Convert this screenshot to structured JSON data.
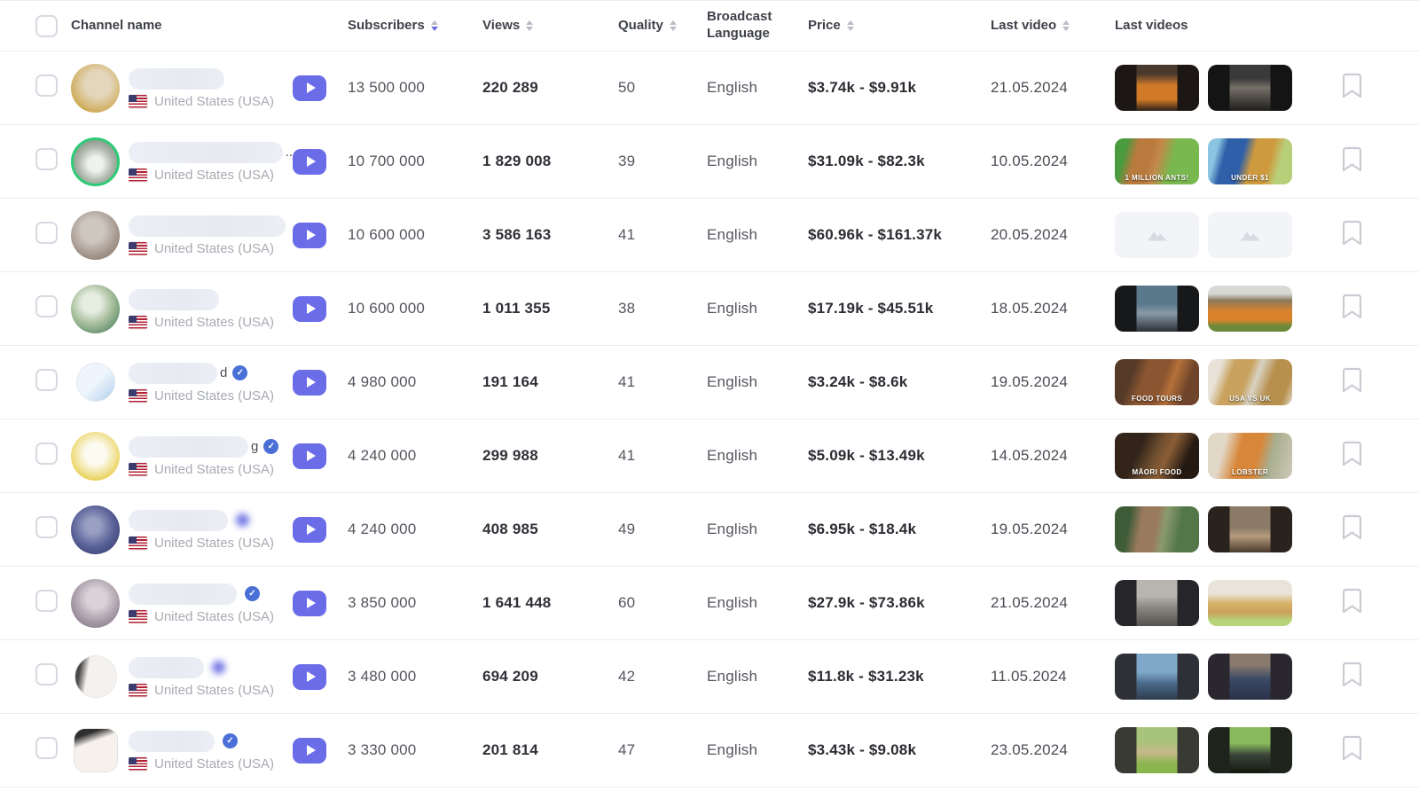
{
  "header": {
    "channel": "Channel name",
    "subscribers": "Subscribers",
    "views": "Views",
    "quality": "Quality",
    "language": "Broadcast Language",
    "price": "Price",
    "last_video": "Last video",
    "last_videos": "Last videos",
    "sort_subscribers": "desc"
  },
  "colors": {
    "accent": "#6b6ce8",
    "verified": "#4a6fd6",
    "row_border": "#ededf2",
    "placeholder_bg": "#f3f4f8"
  },
  "icons": {
    "play": "youtube-play-icon",
    "bookmark": "bookmark-icon",
    "flag": "us-flag-icon",
    "verified": "verified-check-icon",
    "placeholder": "image-placeholder-icon",
    "sort": "sort-arrows-icon"
  },
  "rows": [
    {
      "name_pill_css": "width:108px",
      "name_suffix": "",
      "badge": "none",
      "avatar_css": "background:radial-gradient(circle at 55% 42%,#e3d6bd 0 32%,#d6b978 60%,#c69a33 88%,#b8860b 100%)",
      "country": "United States (USA)",
      "subscribers": "13 500 000",
      "views": "220 289",
      "quality": "50",
      "language": "English",
      "price": "$3.74k - $9.91k",
      "last_video": "21.05.2024",
      "thumbs": [
        {
          "css": "background:linear-gradient(90deg,#1c1714 0 26%,rgba(28,23,20,0) 26% 74%,#1c1714 74%),linear-gradient(180deg,#4a3a2e 0 20%,#d07a28 45% 75%,#2e2018 100%)",
          "caption": "",
          "variant": "img"
        },
        {
          "css": "background:linear-gradient(90deg,#141414 0 26%,rgba(20,20,20,0) 26% 74%,#141414 74%),linear-gradient(180deg,#3a3a3a 0 30%,#757068 50%,#1e1d1b 100%)",
          "caption": "",
          "variant": "img"
        }
      ]
    },
    {
      "name_pill_css": "width:174px",
      "name_suffix": "..",
      "badge": "none",
      "avatar_css": "border:3px solid #2ecb76;background:radial-gradient(circle at 50% 55%,#f0f2ee 0 22%,#aab4a8 55%,#6f7d72 100%)",
      "country": "United States (USA)",
      "subscribers": "10 700 000",
      "views": "1 829 008",
      "quality": "39",
      "language": "English",
      "price": "$31.09k - $82.3k",
      "last_video": "10.05.2024",
      "thumbs": [
        {
          "css": "background:linear-gradient(105deg,#4a9a3e 0 14%,#b97a3e 26% 42%,#c4884a 50%,#79b84e 66% 100%)",
          "caption": "1 MILLION ANTS!",
          "variant": "img"
        },
        {
          "css": "background:linear-gradient(105deg,#8ac4e0 0 12%,#2f5fa8 22% 40%,#cf9a3e 52% 70%,#b8cf7a 82% 100%)",
          "caption": "UNDER $1",
          "variant": "img"
        }
      ]
    },
    {
      "name_pill_css": "width:177px",
      "name_suffix": "",
      "badge": "none",
      "avatar_css": "background:radial-gradient(circle at 45% 40%,#cec7c0 0 28%,#a29389 65%,#7e7065 100%)",
      "country": "United States (USA)",
      "subscribers": "10 600 000",
      "views": "3 586 163",
      "quality": "41",
      "language": "English",
      "price": "$60.96k - $161.37k",
      "last_video": "20.05.2024",
      "thumbs": [
        {
          "css": "background:#f3f4f8",
          "caption": "",
          "variant": "placeholder"
        },
        {
          "css": "background:#f3f4f8",
          "caption": "",
          "variant": "placeholder"
        }
      ]
    },
    {
      "name_pill_css": "width:102px",
      "name_suffix": "",
      "badge": "none",
      "avatar_css": "background:radial-gradient(circle at 42% 38%,#e6eee2 0 22%,#a8bf9c 50%,#63906f 80%,#3f7260 100%)",
      "country": "United States (USA)",
      "subscribers": "10 600 000",
      "views": "1 011 355",
      "quality": "38",
      "language": "English",
      "price": "$17.19k - $45.51k",
      "last_video": "18.05.2024",
      "thumbs": [
        {
          "css": "background:linear-gradient(90deg,#17181a 0 26%,rgba(23,24,26,0) 26% 74%,#17181a 74%),linear-gradient(180deg,#5a7a8c 0 40%,#8a9aa8 60%,#2a3038 100%)",
          "caption": "",
          "variant": "img"
        },
        {
          "css": "background:linear-gradient(180deg,#d8d8d4 0 18%,#8a7a5e 32%,#d8822e 55% 75%,#6a8a3a 88% 100%)",
          "caption": "",
          "variant": "img"
        }
      ]
    },
    {
      "name_pill_css": "width:100px",
      "name_suffix": "d",
      "badge": "check",
      "avatar_css": "width:44px;height:44px;border:1px solid #e2e8f0;background:linear-gradient(135deg,#eef5fc 0 50%,#cfe2f4 75%,#a8ccec 100%)",
      "country": "United States (USA)",
      "subscribers": "4 980 000",
      "views": "191 164",
      "quality": "41",
      "language": "English",
      "price": "$3.24k - $8.6k",
      "last_video": "19.05.2024",
      "thumbs": [
        {
          "css": "background:linear-gradient(110deg,#553a28 0 22%,#8a5530 35% 55%,#b5713a 65%,#6e442a 82% 100%)",
          "caption": "FOOD TOURS",
          "variant": "img"
        },
        {
          "css": "background:linear-gradient(110deg,#e8e2d8 0 15%,#c8a25e 28% 45%,#d8d2c2 55%,#b8904e 70% 88%,#e0d8c8 100%)",
          "caption": "USA vs UK",
          "variant": "img"
        }
      ]
    },
    {
      "name_pill_css": "width:135px",
      "name_suffix": "g",
      "badge": "check",
      "avatar_css": "background:radial-gradient(circle at 50% 45%,#fcfbf2 0 28%,#f1e49e 55%,#e6c62e 85%,#d4b61e 100%)",
      "country": "United States (USA)",
      "subscribers": "4 240 000",
      "views": "299 988",
      "quality": "41",
      "language": "English",
      "price": "$5.09k - $13.49k",
      "last_video": "14.05.2024",
      "thumbs": [
        {
          "css": "background:linear-gradient(115deg,#32241a 0 30%,#6e4e2e 48%,#8a5e36 60%,#241a12 80% 100%)",
          "caption": "MĀORI FOOD",
          "variant": "img"
        },
        {
          "css": "background:linear-gradient(105deg,#e2d8c8 0 20%,#d8873a 38% 58%,#a8ae8e 72%,#cfc8b8 100%)",
          "caption": "LOBSTER",
          "variant": "img"
        }
      ]
    },
    {
      "name_pill_css": "width:112px",
      "name_suffix": "",
      "badge": "blur",
      "avatar_css": "background:radial-gradient(circle at 45% 42%,#9aa0c4 0 18%,#575f96 55%,#2f3560 100%)",
      "country": "United States (USA)",
      "subscribers": "4 240 000",
      "views": "408 985",
      "quality": "49",
      "language": "English",
      "price": "$6.95k - $18.4k",
      "last_video": "19.05.2024",
      "thumbs": [
        {
          "css": "background:linear-gradient(100deg,#3e5c38 0 18%,#9a7a5e 32% 48%,#8a9a6e 58%,#54774a 75% 100%)",
          "caption": "",
          "variant": "img"
        },
        {
          "css": "background:linear-gradient(90deg,#2a221c 0 26%,rgba(42,34,28,0) 26% 74%,#2a221c 74%),linear-gradient(180deg,#8a7a66 0 45%,#b59a7e 65%,#4a3a2c 100%)",
          "caption": "",
          "variant": "img"
        }
      ]
    },
    {
      "name_pill_css": "width:122px",
      "name_suffix": "",
      "badge": "check",
      "avatar_css": "background:radial-gradient(circle at 52% 40%,#d9d2d8 0 25%,#a79aa6 60%,#756d84 100%)",
      "country": "United States (USA)",
      "subscribers": "3 850 000",
      "views": "1 641 448",
      "quality": "60",
      "language": "English",
      "price": "$27.9k - $73.86k",
      "last_video": "21.05.2024",
      "thumbs": [
        {
          "css": "background:linear-gradient(90deg,#26262a 0 26%,rgba(38,38,42,0) 26% 74%,#26262a 74%),linear-gradient(180deg,#b8b4ae 0 35%,#8a8680 60%,#54524e 100%)",
          "caption": "",
          "variant": "img"
        },
        {
          "css": "background:linear-gradient(180deg,#e8e4da 0 30%,#d8b46a 50%,#caa05a 70%,#b8d47a 88% 100%)",
          "caption": "",
          "variant": "img"
        }
      ]
    },
    {
      "name_pill_css": "width:85px",
      "name_suffix": "",
      "badge": "blur",
      "avatar_css": "width:48px;height:48px;border:1px solid #e8e8e8;background:linear-gradient(100deg,#4a4a4a 0 14%,#f4f1ee 32% 100%)",
      "country": "United States (USA)",
      "subscribers": "3 480 000",
      "views": "694 209",
      "quality": "42",
      "language": "English",
      "price": "$11.8k - $31.23k",
      "last_video": "11.05.2024",
      "thumbs": [
        {
          "css": "background:linear-gradient(90deg,#2e3038 0 26%,rgba(46,48,56,0) 26% 74%,#2e3038 74%),linear-gradient(180deg,#7fa8c8 0 40%,#4a6a8a 65%,#2e3c4e 100%)",
          "caption": "",
          "variant": "img"
        },
        {
          "css": "background:linear-gradient(90deg,#2a282e 0 26%,rgba(42,40,46,0) 26% 74%,#2a282e 74%),linear-gradient(180deg,#8a7a6e 0 25%,#3a4a66 55%,#2a3248 100%)",
          "caption": "",
          "variant": "img"
        }
      ]
    },
    {
      "name_pill_css": "width:97px",
      "name_suffix": "",
      "badge": "check",
      "avatar_css": "width:50px;height:50px;border-radius:13px;border:1px solid #e5e3e0;background:linear-gradient(160deg,#2e2e2e 0 16%,#f6f1ec 34% 100%)",
      "country": "United States (USA)",
      "subscribers": "3 330 000",
      "views": "201 814",
      "quality": "47",
      "language": "English",
      "price": "$3.43k - $9.08k",
      "last_video": "23.05.2024",
      "thumbs": [
        {
          "css": "background:linear-gradient(90deg,#3a3a34 0 26%,rgba(58,58,52,0) 26% 74%,#3a3a34 74%),linear-gradient(180deg,#a8c47a 0 30%,#c8b88a 55%,#8ab44e 80% 100%)",
          "caption": "",
          "variant": "img"
        },
        {
          "css": "background:linear-gradient(90deg,#1e241c 0 26%,rgba(30,36,28,0) 26% 74%,#1e241c 74%),linear-gradient(180deg,#8aba5e 0 35%,#3a4438 60%,#14180f 100%)",
          "caption": "",
          "variant": "img"
        }
      ]
    }
  ]
}
